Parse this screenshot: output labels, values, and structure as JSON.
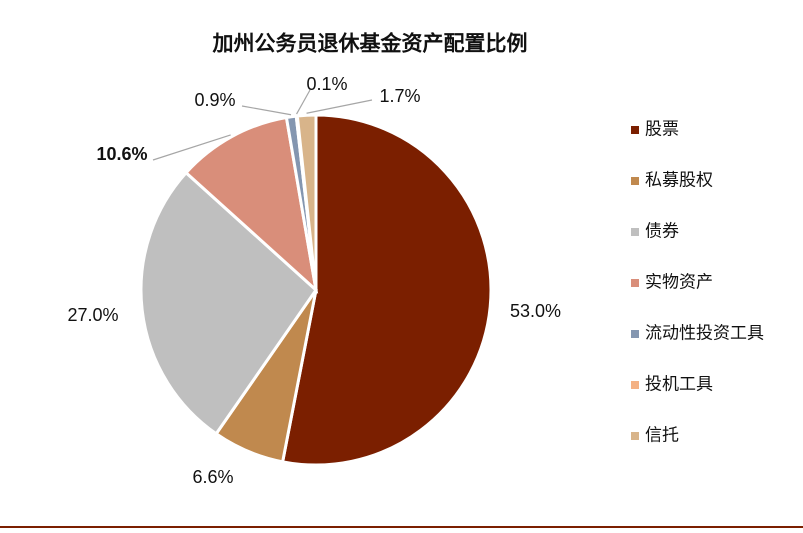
{
  "chart_data": {
    "type": "pie",
    "title": "加州公务员退休基金资产配置比例",
    "categories": [
      "股票",
      "私募股权",
      "债券",
      "实物资产",
      "流动性投资工具",
      "投机工具",
      "信托"
    ],
    "values": [
      53.0,
      6.6,
      27.0,
      10.6,
      0.9,
      0.1,
      1.7
    ],
    "value_labels": [
      "53.0%",
      "6.6%",
      "27.0%",
      "10.6%",
      "0.9%",
      "0.1%",
      "1.7%"
    ],
    "colors": [
      "#7b1f00",
      "#c0894e",
      "#bfbfbf",
      "#d98e7a",
      "#8496b0",
      "#f4b183",
      "#d8b48a"
    ],
    "legend": "right"
  }
}
